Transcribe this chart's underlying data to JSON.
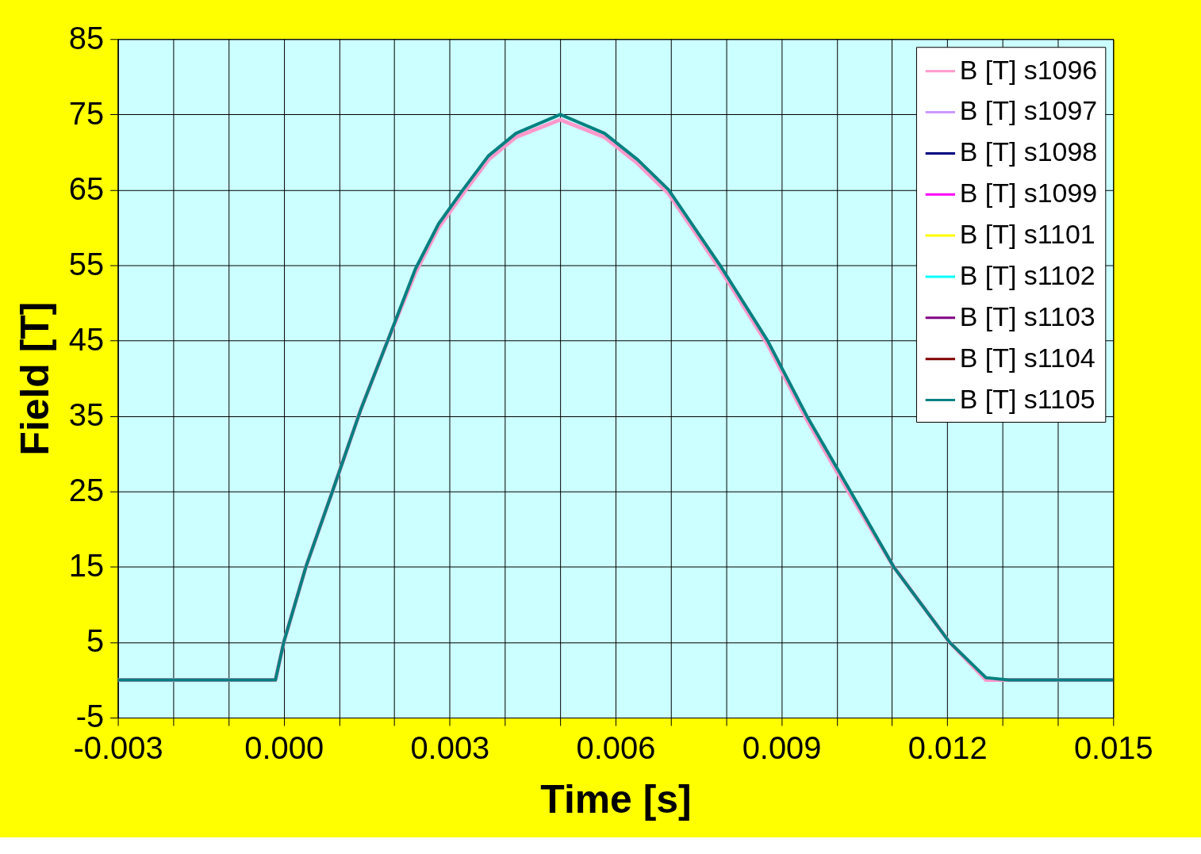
{
  "chart_data": {
    "type": "line",
    "xlabel": "Time [s]",
    "ylabel": "Field [T]",
    "x": [
      -0.003,
      -0.00015,
      0.0,
      0.0004,
      0.00088,
      0.0014,
      0.00188,
      0.00238,
      0.0028,
      0.00324,
      0.0037,
      0.0042,
      0.005,
      0.0058,
      0.0064,
      0.00696,
      0.00789,
      0.00875,
      0.00946,
      0.01025,
      0.01103,
      0.01204,
      0.0127,
      0.0131,
      0.015
    ],
    "series": [
      {
        "name": "B [T] s1096",
        "color": "#ff99cc",
        "values": [
          0,
          0,
          5,
          15,
          25,
          36,
          45,
          54,
          60,
          64.5,
          69,
          72,
          74.3,
          72,
          68.5,
          64.5,
          54.5,
          44.5,
          34.5,
          24.5,
          15,
          5,
          0,
          0,
          0
        ]
      },
      {
        "name": "B [T] s1097",
        "color": "#cc99ff",
        "values": [
          null,
          null,
          null,
          null,
          null,
          null,
          null,
          null,
          null,
          null,
          null,
          null,
          null,
          null,
          null,
          null,
          null,
          null,
          null,
          null,
          null,
          null,
          null,
          null,
          null
        ]
      },
      {
        "name": "B [T] s1098",
        "color": "#000080",
        "values": [
          null,
          null,
          null,
          null,
          null,
          null,
          null,
          null,
          null,
          null,
          null,
          null,
          null,
          null,
          null,
          null,
          null,
          null,
          null,
          null,
          null,
          null,
          null,
          null,
          null
        ]
      },
      {
        "name": "B [T] s1099",
        "color": "#ff00ff",
        "values": [
          null,
          null,
          null,
          null,
          null,
          null,
          null,
          null,
          null,
          null,
          null,
          null,
          null,
          null,
          null,
          null,
          null,
          null,
          null,
          null,
          null,
          null,
          null,
          null,
          null
        ]
      },
      {
        "name": "B [T] s1101",
        "color": "#ffff00",
        "values": [
          null,
          null,
          null,
          null,
          null,
          null,
          null,
          null,
          null,
          null,
          null,
          null,
          null,
          null,
          null,
          null,
          null,
          null,
          null,
          null,
          null,
          null,
          null,
          null,
          null
        ]
      },
      {
        "name": "B [T] s1102",
        "color": "#00ffff",
        "values": [
          null,
          null,
          null,
          null,
          null,
          null,
          null,
          null,
          null,
          null,
          null,
          null,
          null,
          null,
          null,
          null,
          null,
          null,
          null,
          null,
          null,
          null,
          null,
          null,
          null
        ]
      },
      {
        "name": "B [T] s1103",
        "color": "#800080",
        "values": [
          null,
          null,
          null,
          null,
          null,
          null,
          null,
          null,
          null,
          null,
          null,
          null,
          null,
          null,
          null,
          null,
          null,
          null,
          null,
          null,
          null,
          null,
          null,
          null,
          null
        ]
      },
      {
        "name": "B [T] s1104",
        "color": "#800000",
        "values": [
          null,
          null,
          null,
          null,
          null,
          null,
          null,
          null,
          null,
          null,
          null,
          null,
          null,
          null,
          null,
          null,
          null,
          null,
          null,
          null,
          null,
          null,
          null,
          null,
          null
        ]
      },
      {
        "name": "B [T] s1105",
        "color": "#008080",
        "values": [
          0,
          0,
          5,
          15,
          25,
          36,
          45,
          54.5,
          60.5,
          65,
          69.5,
          72.5,
          75,
          72.5,
          69,
          65,
          55,
          45,
          35,
          25,
          15,
          5,
          0.3,
          0,
          0
        ]
      }
    ],
    "xlim": [
      -0.003,
      0.015
    ],
    "xticks": [
      -0.003,
      {
        "value": -0.002,
        "label": null
      },
      {
        "value": -0.001,
        "label": null
      },
      {
        "value": 0.0,
        "label": "0.000"
      },
      {
        "value": 0.001,
        "label": null
      },
      {
        "value": 0.002,
        "label": null
      },
      0.003,
      {
        "value": 0.004,
        "label": null
      },
      {
        "value": 0.005,
        "label": null
      },
      0.006,
      {
        "value": 0.007,
        "label": null
      },
      {
        "value": 0.008,
        "label": null
      },
      0.009,
      {
        "value": 0.01,
        "label": null
      },
      {
        "value": 0.011,
        "label": null
      },
      0.012,
      {
        "value": 0.013,
        "label": null
      },
      {
        "value": 0.014,
        "label": null
      },
      0.015
    ],
    "ylim": [
      -5,
      85
    ],
    "yticks": [
      -5,
      5,
      15,
      25,
      35,
      45,
      55,
      65,
      75,
      85
    ],
    "grid": true,
    "legend": "top right",
    "marker": "none",
    "line_style": "solid"
  }
}
